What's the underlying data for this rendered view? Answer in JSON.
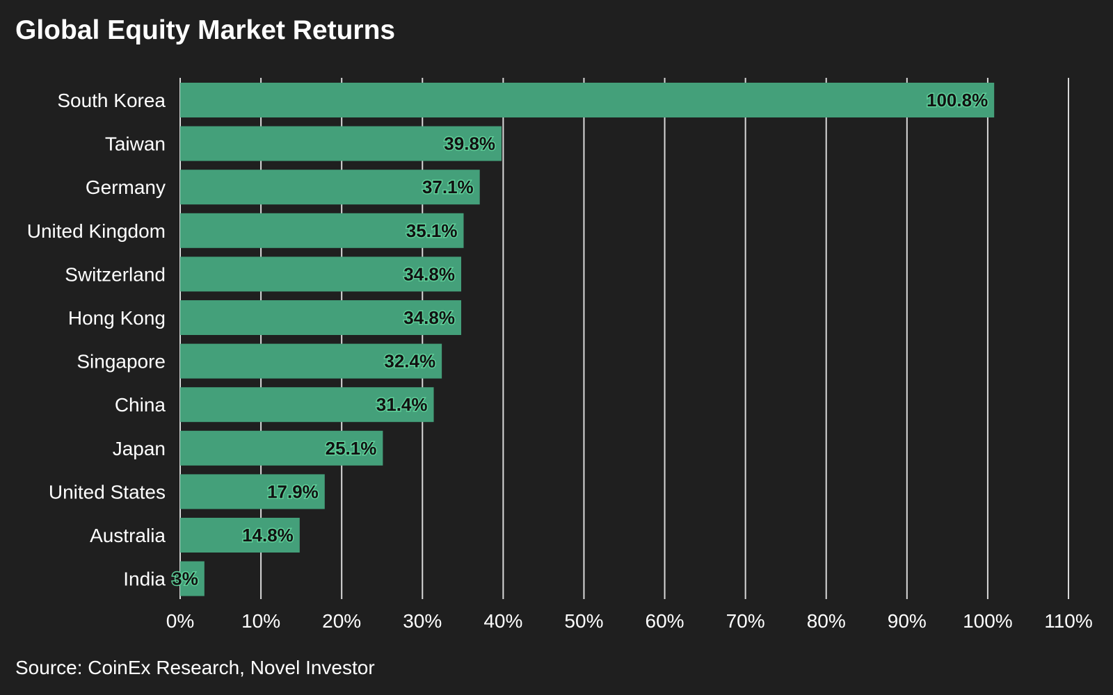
{
  "chart_data": {
    "type": "bar",
    "orientation": "horizontal",
    "title": "Global Equity Market Returns",
    "source": "Source: CoinEx Research, Novel Investor",
    "categories": [
      "South Korea",
      "Taiwan",
      "Germany",
      "United Kingdom",
      "Switzerland",
      "Hong Kong",
      "Singapore",
      "China",
      "Japan",
      "United States",
      "Australia",
      "India"
    ],
    "values": [
      100.8,
      39.8,
      37.1,
      35.1,
      34.8,
      34.8,
      32.4,
      31.4,
      25.1,
      17.9,
      14.8,
      3
    ],
    "data_labels": [
      "100.8%",
      "39.8%",
      "37.1%",
      "35.1%",
      "34.8%",
      "34.8%",
      "32.4%",
      "31.4%",
      "25.1%",
      "17.9%",
      "14.8%",
      "3%"
    ],
    "xlim": [
      0,
      110
    ],
    "xticks": [
      0,
      10,
      20,
      30,
      40,
      50,
      60,
      70,
      80,
      90,
      100,
      110
    ],
    "xtick_labels": [
      "0%",
      "10%",
      "20%",
      "30%",
      "40%",
      "50%",
      "60%",
      "70%",
      "80%",
      "90%",
      "100%",
      "110%"
    ],
    "grid": "vertical",
    "colors": {
      "background": "#1f1f1f",
      "bar": "#44a07a",
      "grid": "#d9d9d9",
      "text": "#ffffff",
      "data_label": "#111111"
    }
  }
}
